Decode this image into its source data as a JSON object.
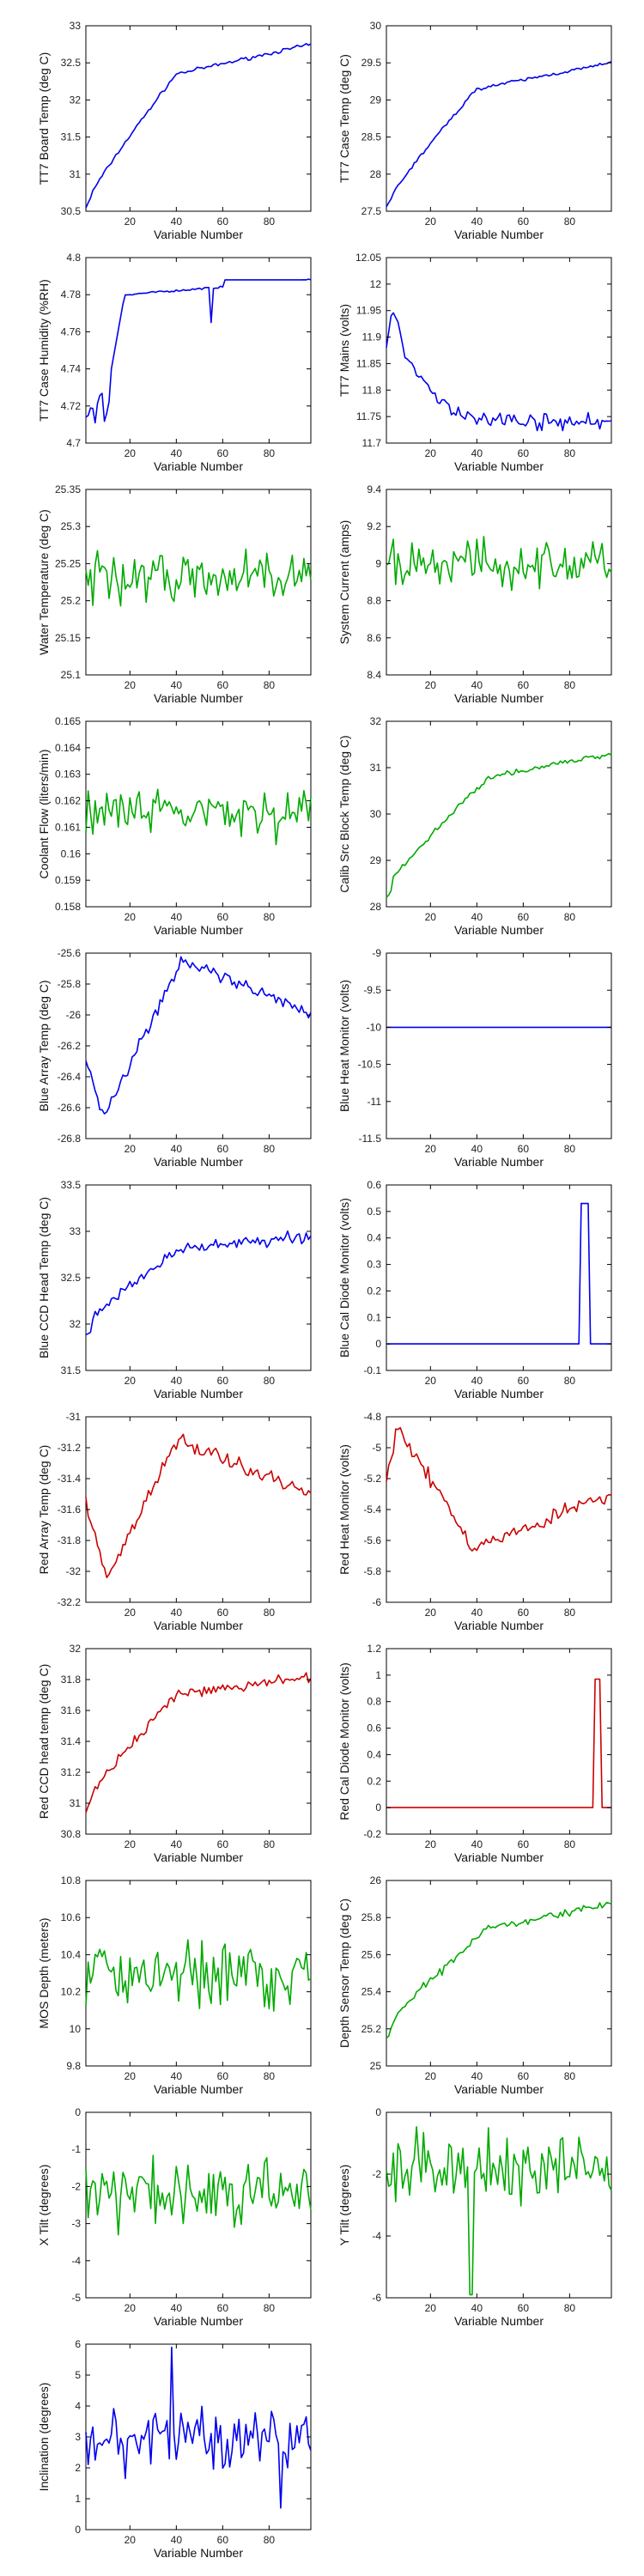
{
  "colors": {
    "blue": "#0000ee",
    "green": "#00aa00",
    "red": "#cc0000"
  },
  "chart_data": [
    {
      "type": "line",
      "xlabel": "Variable Number",
      "ylabel": "TT7 Board Temp (deg C)",
      "ylim": [
        30.5,
        33
      ],
      "yticks": [
        "30.5",
        "31",
        "31.5",
        "32",
        "32.5",
        "33"
      ],
      "xlim": [
        1,
        98
      ],
      "xticks": [
        "20",
        "40",
        "60",
        "80"
      ],
      "color": "blue",
      "shape": "rise",
      "params": [
        30.55,
        30.6,
        32.35,
        32.75,
        40,
        0.02
      ]
    },
    {
      "type": "line",
      "xlabel": "Variable Number",
      "ylabel": "TT7 Case Temp (deg C)",
      "ylim": [
        27.5,
        30
      ],
      "yticks": [
        "27.5",
        "28",
        "28.5",
        "29",
        "29.5",
        "30"
      ],
      "xlim": [
        1,
        98
      ],
      "xticks": [
        "20",
        "40",
        "60",
        "80"
      ],
      "color": "blue",
      "shape": "rise",
      "params": [
        27.55,
        27.6,
        29.15,
        29.5,
        40,
        0.02
      ]
    },
    {
      "type": "line",
      "xlabel": "Variable Number",
      "ylabel": "TT7 Case Humidity (%RH)",
      "ylim": [
        4.7,
        4.8
      ],
      "yticks": [
        "4.7",
        "4.72",
        "4.74",
        "4.76",
        "4.78",
        "4.8"
      ],
      "xlim": [
        1,
        98
      ],
      "xticks": [
        "20",
        "40",
        "60",
        "80"
      ],
      "color": "blue",
      "shape": "humidity",
      "params": [
        4.71,
        4.79
      ]
    },
    {
      "type": "line",
      "xlabel": "Variable Number",
      "ylabel": "TT7 Mains (volts)",
      "ylim": [
        11.7,
        12.05
      ],
      "yticks": [
        "11.7",
        "11.75",
        "11.8",
        "11.85",
        "11.9",
        "11.95",
        "12",
        "12.05"
      ],
      "xlim": [
        1,
        98
      ],
      "xticks": [
        "20",
        "40",
        "60",
        "80"
      ],
      "color": "blue",
      "shape": "decay",
      "params": [
        11.95,
        11.74,
        0.012
      ]
    },
    {
      "type": "line",
      "xlabel": "Variable Number",
      "ylabel": "Water Temperature (deg C)",
      "ylim": [
        25.1,
        25.35
      ],
      "yticks": [
        "25.1",
        "25.15",
        "25.2",
        "25.25",
        "25.3",
        "25.35"
      ],
      "xlim": [
        1,
        98
      ],
      "xticks": [
        "20",
        "40",
        "60",
        "80"
      ],
      "color": "green",
      "shape": "noise",
      "params": [
        25.23,
        0.03
      ]
    },
    {
      "type": "line",
      "xlabel": "Variable Number",
      "ylabel": "System Current (amps)",
      "ylim": [
        8.4,
        9.4
      ],
      "yticks": [
        "8.4",
        "8.6",
        "8.8",
        "9",
        "9.2",
        "9.4"
      ],
      "xlim": [
        1,
        98
      ],
      "xticks": [
        "20",
        "40",
        "60",
        "80"
      ],
      "color": "green",
      "shape": "noise",
      "params": [
        9.0,
        0.1
      ]
    },
    {
      "type": "line",
      "xlabel": "Variable Number",
      "ylabel": "Coolant Flow (liters/min)",
      "ylim": [
        0.158,
        0.165
      ],
      "yticks": [
        "0.158",
        "0.159",
        "0.16",
        "0.161",
        "0.162",
        "0.163",
        "0.164",
        "0.165"
      ],
      "xlim": [
        1,
        98
      ],
      "xticks": [
        "20",
        "40",
        "60",
        "80"
      ],
      "color": "green",
      "shape": "noise",
      "params": [
        0.1615,
        0.0008
      ]
    },
    {
      "type": "line",
      "xlabel": "Variable Number",
      "ylabel": "Calib Src Block Temp (deg C)",
      "ylim": [
        28,
        32
      ],
      "yticks": [
        "28",
        "29",
        "30",
        "31",
        "32"
      ],
      "xlim": [
        1,
        98
      ],
      "xticks": [
        "20",
        "40",
        "60",
        "80"
      ],
      "color": "green",
      "shape": "rise",
      "params": [
        28.2,
        28.4,
        30.8,
        31.3,
        45,
        0.05
      ]
    },
    {
      "type": "line",
      "xlabel": "Variable Number",
      "ylabel": "Blue Array Temp (deg C)",
      "ylim": [
        -26.8,
        -25.6
      ],
      "yticks": [
        "-26.8",
        "-26.6",
        "-26.4",
        "-26.2",
        "-26",
        "-25.8",
        "-25.6"
      ],
      "xlim": [
        1,
        98
      ],
      "xticks": [
        "20",
        "40",
        "60",
        "80"
      ],
      "color": "blue",
      "shape": "bluearray",
      "params": [
        -26.25,
        -26.65,
        -25.65,
        -26.0
      ]
    },
    {
      "type": "line",
      "xlabel": "Variable Number",
      "ylabel": "Blue Heat Monitor (volts)",
      "ylim": [
        -11.5,
        -9
      ],
      "yticks": [
        "-11.5",
        "-11",
        "-10.5",
        "-10",
        "-9.5",
        "-9"
      ],
      "xlim": [
        1,
        98
      ],
      "xticks": [
        "20",
        "40",
        "60",
        "80"
      ],
      "color": "blue",
      "shape": "const",
      "params": [
        -10
      ]
    },
    {
      "type": "line",
      "xlabel": "Variable Number",
      "ylabel": "Blue CCD Head Temp (deg C)",
      "ylim": [
        31.5,
        33.5
      ],
      "yticks": [
        "31.5",
        "32",
        "32.5",
        "33",
        "33.5"
      ],
      "xlim": [
        1,
        98
      ],
      "xticks": [
        "20",
        "40",
        "60",
        "80"
      ],
      "color": "blue",
      "shape": "rise",
      "params": [
        31.9,
        32.0,
        32.8,
        32.95,
        40,
        0.05
      ]
    },
    {
      "type": "line",
      "xlabel": "Variable Number",
      "ylabel": "Blue Cal Diode Monitor (volts)",
      "ylim": [
        -0.1,
        0.6
      ],
      "yticks": [
        "-0.1",
        "0",
        "0.1",
        "0.2",
        "0.3",
        "0.4",
        "0.5",
        "0.6"
      ],
      "xlim": [
        1,
        98
      ],
      "xticks": [
        "20",
        "40",
        "60",
        "80"
      ],
      "color": "blue",
      "shape": "spike",
      "params": [
        0,
        0.53,
        85,
        88
      ]
    },
    {
      "type": "line",
      "xlabel": "Variable Number",
      "ylabel": "Red Array Temp (deg C)",
      "ylim": [
        -32.2,
        -31
      ],
      "yticks": [
        "-32.2",
        "-32",
        "-31.8",
        "-31.6",
        "-31.4",
        "-31.2",
        "-31"
      ],
      "xlim": [
        1,
        98
      ],
      "xticks": [
        "20",
        "40",
        "60",
        "80"
      ],
      "color": "red",
      "shape": "redarray",
      "params": [
        -31.5,
        -32.05,
        -31.15,
        -31.5
      ]
    },
    {
      "type": "line",
      "xlabel": "Variable Number",
      "ylabel": "Red Heat Monitor (volts)",
      "ylim": [
        -6,
        -4.8
      ],
      "yticks": [
        "-6",
        "-5.8",
        "-5.6",
        "-5.4",
        "-5.2",
        "-5",
        "-4.8"
      ],
      "xlim": [
        1,
        98
      ],
      "xticks": [
        "20",
        "40",
        "60",
        "80"
      ],
      "color": "red",
      "shape": "redheat",
      "params": [
        -5.3,
        -4.85,
        -5.65,
        -5.3
      ]
    },
    {
      "type": "line",
      "xlabel": "Variable Number",
      "ylabel": "Red CCD head temp (deg C)",
      "ylim": [
        30.8,
        32
      ],
      "yticks": [
        "30.8",
        "31",
        "31.2",
        "31.4",
        "31.6",
        "31.8",
        "32"
      ],
      "xlim": [
        1,
        98
      ],
      "xticks": [
        "20",
        "40",
        "60",
        "80"
      ],
      "color": "red",
      "shape": "rise",
      "params": [
        30.95,
        31.0,
        31.7,
        31.82,
        40,
        0.03
      ]
    },
    {
      "type": "line",
      "xlabel": "Variable Number",
      "ylabel": "Red Cal Diode Monitor (volts)",
      "ylim": [
        -0.2,
        1.2
      ],
      "yticks": [
        "-0.2",
        "0",
        "0.2",
        "0.4",
        "0.6",
        "0.8",
        "1",
        "1.2"
      ],
      "xlim": [
        1,
        98
      ],
      "xticks": [
        "20",
        "40",
        "60",
        "80"
      ],
      "color": "red",
      "shape": "spike",
      "params": [
        0,
        0.97,
        91,
        93
      ]
    },
    {
      "type": "line",
      "xlabel": "Variable Number",
      "ylabel": "MOS Depth (meters)",
      "ylim": [
        9.8,
        10.8
      ],
      "yticks": [
        "9.8",
        "10",
        "10.2",
        "10.4",
        "10.6",
        "10.8"
      ],
      "xlim": [
        1,
        98
      ],
      "xticks": [
        "20",
        "40",
        "60",
        "80"
      ],
      "color": "green",
      "shape": "noise",
      "params": [
        10.3,
        0.15
      ]
    },
    {
      "type": "line",
      "xlabel": "Variable Number",
      "ylabel": "Depth Sensor Temp (deg C)",
      "ylim": [
        25,
        26
      ],
      "yticks": [
        "25",
        "25.2",
        "25.4",
        "25.6",
        "25.8",
        "26"
      ],
      "xlim": [
        1,
        98
      ],
      "xticks": [
        "20",
        "40",
        "60",
        "80"
      ],
      "color": "green",
      "shape": "rise",
      "params": [
        25.15,
        25.2,
        25.75,
        25.87,
        45,
        0.02
      ]
    },
    {
      "type": "line",
      "xlabel": "Variable Number",
      "ylabel": "X Tilt (degrees)",
      "ylim": [
        -5,
        0
      ],
      "yticks": [
        "-5",
        "-4",
        "-3",
        "-2",
        "-1",
        "0"
      ],
      "xlim": [
        1,
        98
      ],
      "xticks": [
        "20",
        "40",
        "60",
        "80"
      ],
      "color": "green",
      "shape": "noise",
      "params": [
        -2.2,
        0.8
      ]
    },
    {
      "type": "line",
      "xlabel": "Variable Number",
      "ylabel": "Y Tilt (degrees)",
      "ylim": [
        -6,
        0
      ],
      "yticks": [
        "-6",
        "-4",
        "-2",
        "0"
      ],
      "xlim": [
        1,
        98
      ],
      "xticks": [
        "20",
        "40",
        "60",
        "80"
      ],
      "color": "green",
      "shape": "ytilt",
      "params": [
        -1.8,
        0.9
      ]
    },
    {
      "type": "line",
      "xlabel": "Variable Number",
      "ylabel": "Inclination (degrees)",
      "ylim": [
        0,
        6
      ],
      "yticks": [
        "0",
        "1",
        "2",
        "3",
        "4",
        "5",
        "6"
      ],
      "xlim": [
        1,
        98
      ],
      "xticks": [
        "20",
        "40",
        "60",
        "80"
      ],
      "color": "blue",
      "shape": "incl",
      "params": [
        3.0,
        0.9
      ]
    }
  ]
}
